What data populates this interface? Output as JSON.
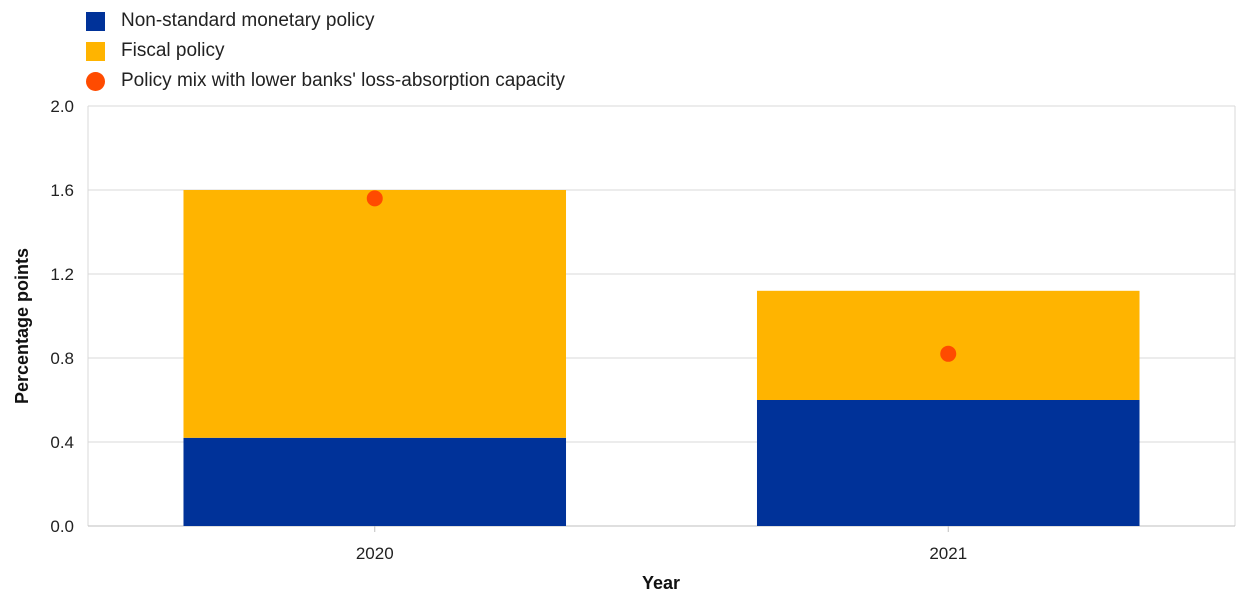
{
  "chart_data": {
    "type": "bar",
    "stacked": true,
    "title": "",
    "xlabel": "Year",
    "ylabel": "Percentage points",
    "ylim": [
      0,
      2.0
    ],
    "yticks": [
      "0.0",
      "0.4",
      "0.8",
      "1.2",
      "1.6",
      "2.0"
    ],
    "categories": [
      "2020",
      "2021"
    ],
    "series": [
      {
        "name": "Non-standard monetary policy",
        "kind": "bar",
        "color": "#003299",
        "values": [
          0.42,
          0.6
        ]
      },
      {
        "name": "Fiscal policy",
        "kind": "bar",
        "color": "#FFB400",
        "values": [
          1.18,
          0.52
        ]
      },
      {
        "name": "Policy mix with lower banks' loss-absorption capacity",
        "kind": "dot",
        "color": "#FF4B00",
        "values": [
          1.56,
          0.82
        ]
      }
    ],
    "grid": true,
    "legend_position": "top-left"
  }
}
